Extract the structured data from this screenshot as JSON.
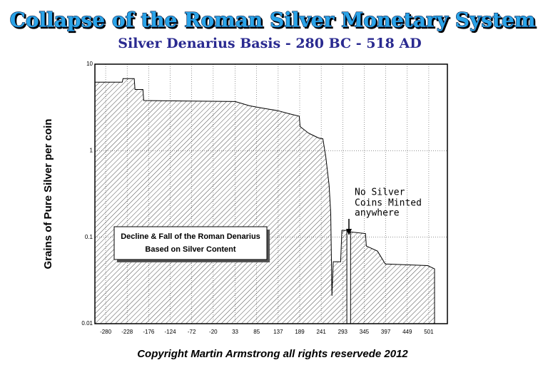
{
  "chart_data": {
    "type": "area",
    "title": "Collapse of the Roman Silver Monetary System",
    "subtitle": "Silver Denarius Basis - 280 BC - 518 AD",
    "y_label": "Grains of Pure Silver per coin",
    "source": "Copyright Martin Armstrong all rights reservede 2012",
    "annotations": [
      {
        "lines": [
          "Decline & Fall of the Roman Denarius",
          "Based on Silver Content"
        ]
      },
      {
        "lines": [
          "No Silver",
          "Coins Minted",
          "anywhere"
        ]
      }
    ],
    "x": [
      -306,
      -240,
      -238,
      -211,
      -209,
      -190,
      -188,
      33,
      68,
      100,
      136,
      160,
      188,
      190,
      210,
      222,
      235,
      245,
      252,
      260,
      264,
      267,
      270,
      288,
      291,
      303,
      306,
      312,
      348,
      350,
      377,
      396,
      498,
      515
    ],
    "values": [
      6.2,
      6.2,
      6.8,
      6.8,
      5.1,
      5.1,
      3.8,
      3.7,
      3.3,
      3.1,
      2.9,
      2.7,
      2.5,
      1.9,
      1.6,
      1.5,
      1.4,
      1.37,
      0.86,
      0.4,
      0.19,
      0.021,
      0.052,
      0.052,
      0.12,
      0.12,
      null,
      0.115,
      0.11,
      0.079,
      0.069,
      0.049,
      0.047,
      0.043
    ],
    "color": "#000000",
    "xlim": [
      -306,
      546
    ],
    "xticks": [
      -280,
      -228,
      -176,
      -124,
      -72,
      -20,
      33,
      85,
      137,
      189,
      241,
      293,
      345,
      397,
      449,
      501
    ],
    "ylim": [
      0.01,
      10
    ],
    "yticks": [
      0.01,
      0.1,
      1,
      10
    ],
    "log_y": true,
    "grid": true
  }
}
